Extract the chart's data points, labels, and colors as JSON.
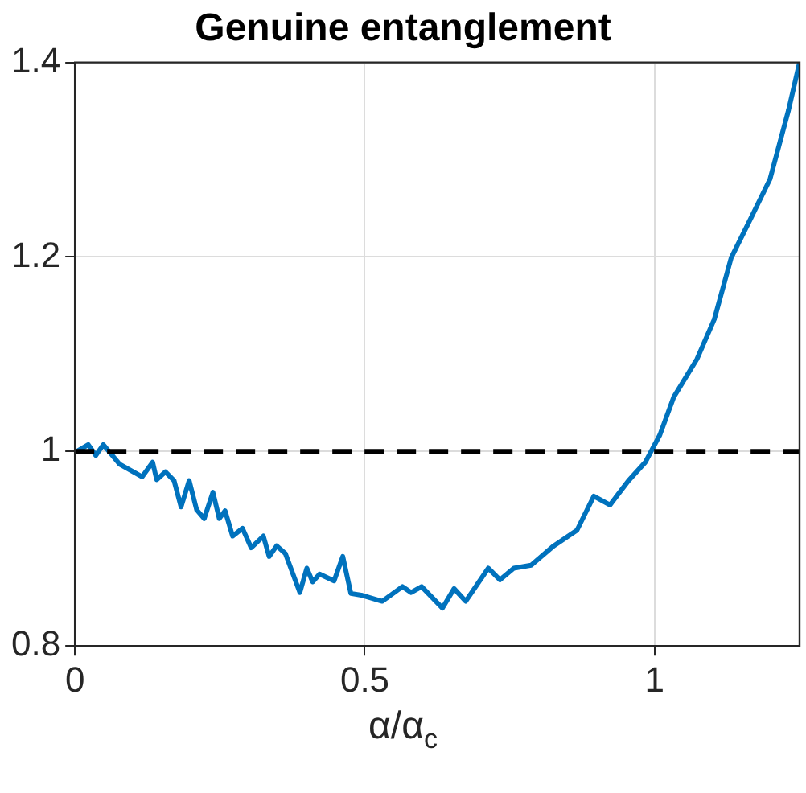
{
  "chart_data": {
    "type": "line",
    "title": "Genuine entanglement",
    "xlabel": "α/α$_{c}$",
    "x": [
      0.003,
      0.023,
      0.036,
      0.049,
      0.077,
      0.116,
      0.134,
      0.141,
      0.156,
      0.171,
      0.183,
      0.197,
      0.21,
      0.223,
      0.238,
      0.249,
      0.259,
      0.272,
      0.289,
      0.304,
      0.325,
      0.335,
      0.348,
      0.363,
      0.388,
      0.4,
      0.41,
      0.422,
      0.447,
      0.462,
      0.476,
      0.496,
      0.53,
      0.565,
      0.58,
      0.598,
      0.634,
      0.654,
      0.674,
      0.713,
      0.733,
      0.757,
      0.787,
      0.826,
      0.866,
      0.895,
      0.923,
      0.955,
      0.984,
      1.009,
      1.033,
      1.073,
      1.103,
      1.132,
      1.167,
      1.199,
      1.231,
      1.25
    ],
    "series": [
      {
        "color": "#0072bd",
        "values": [
          1.0,
          1.007,
          0.996,
          1.007,
          0.987,
          0.974,
          0.989,
          0.971,
          0.979,
          0.97,
          0.943,
          0.97,
          0.94,
          0.931,
          0.958,
          0.931,
          0.939,
          0.913,
          0.921,
          0.901,
          0.913,
          0.892,
          0.903,
          0.895,
          0.855,
          0.88,
          0.866,
          0.874,
          0.867,
          0.892,
          0.854,
          0.852,
          0.846,
          0.861,
          0.855,
          0.861,
          0.839,
          0.859,
          0.846,
          0.88,
          0.868,
          0.88,
          0.883,
          0.903,
          0.919,
          0.954,
          0.945,
          0.97,
          0.989,
          1.017,
          1.056,
          1.095,
          1.136,
          1.199,
          1.241,
          1.28,
          1.351,
          1.4
        ]
      }
    ],
    "xlim": [
      0,
      1.25
    ],
    "xticks": [
      0,
      0.5,
      1
    ],
    "ylim": [
      0.8,
      1.4
    ],
    "yticks": [
      0.8,
      1,
      1.2,
      1.4
    ],
    "ref_lines": [
      {
        "axis": "y",
        "value": 1,
        "color": "#000000",
        "line_style": "dashed"
      }
    ],
    "grid": true,
    "legend": false,
    "marker": "none",
    "line_style": "solid"
  }
}
